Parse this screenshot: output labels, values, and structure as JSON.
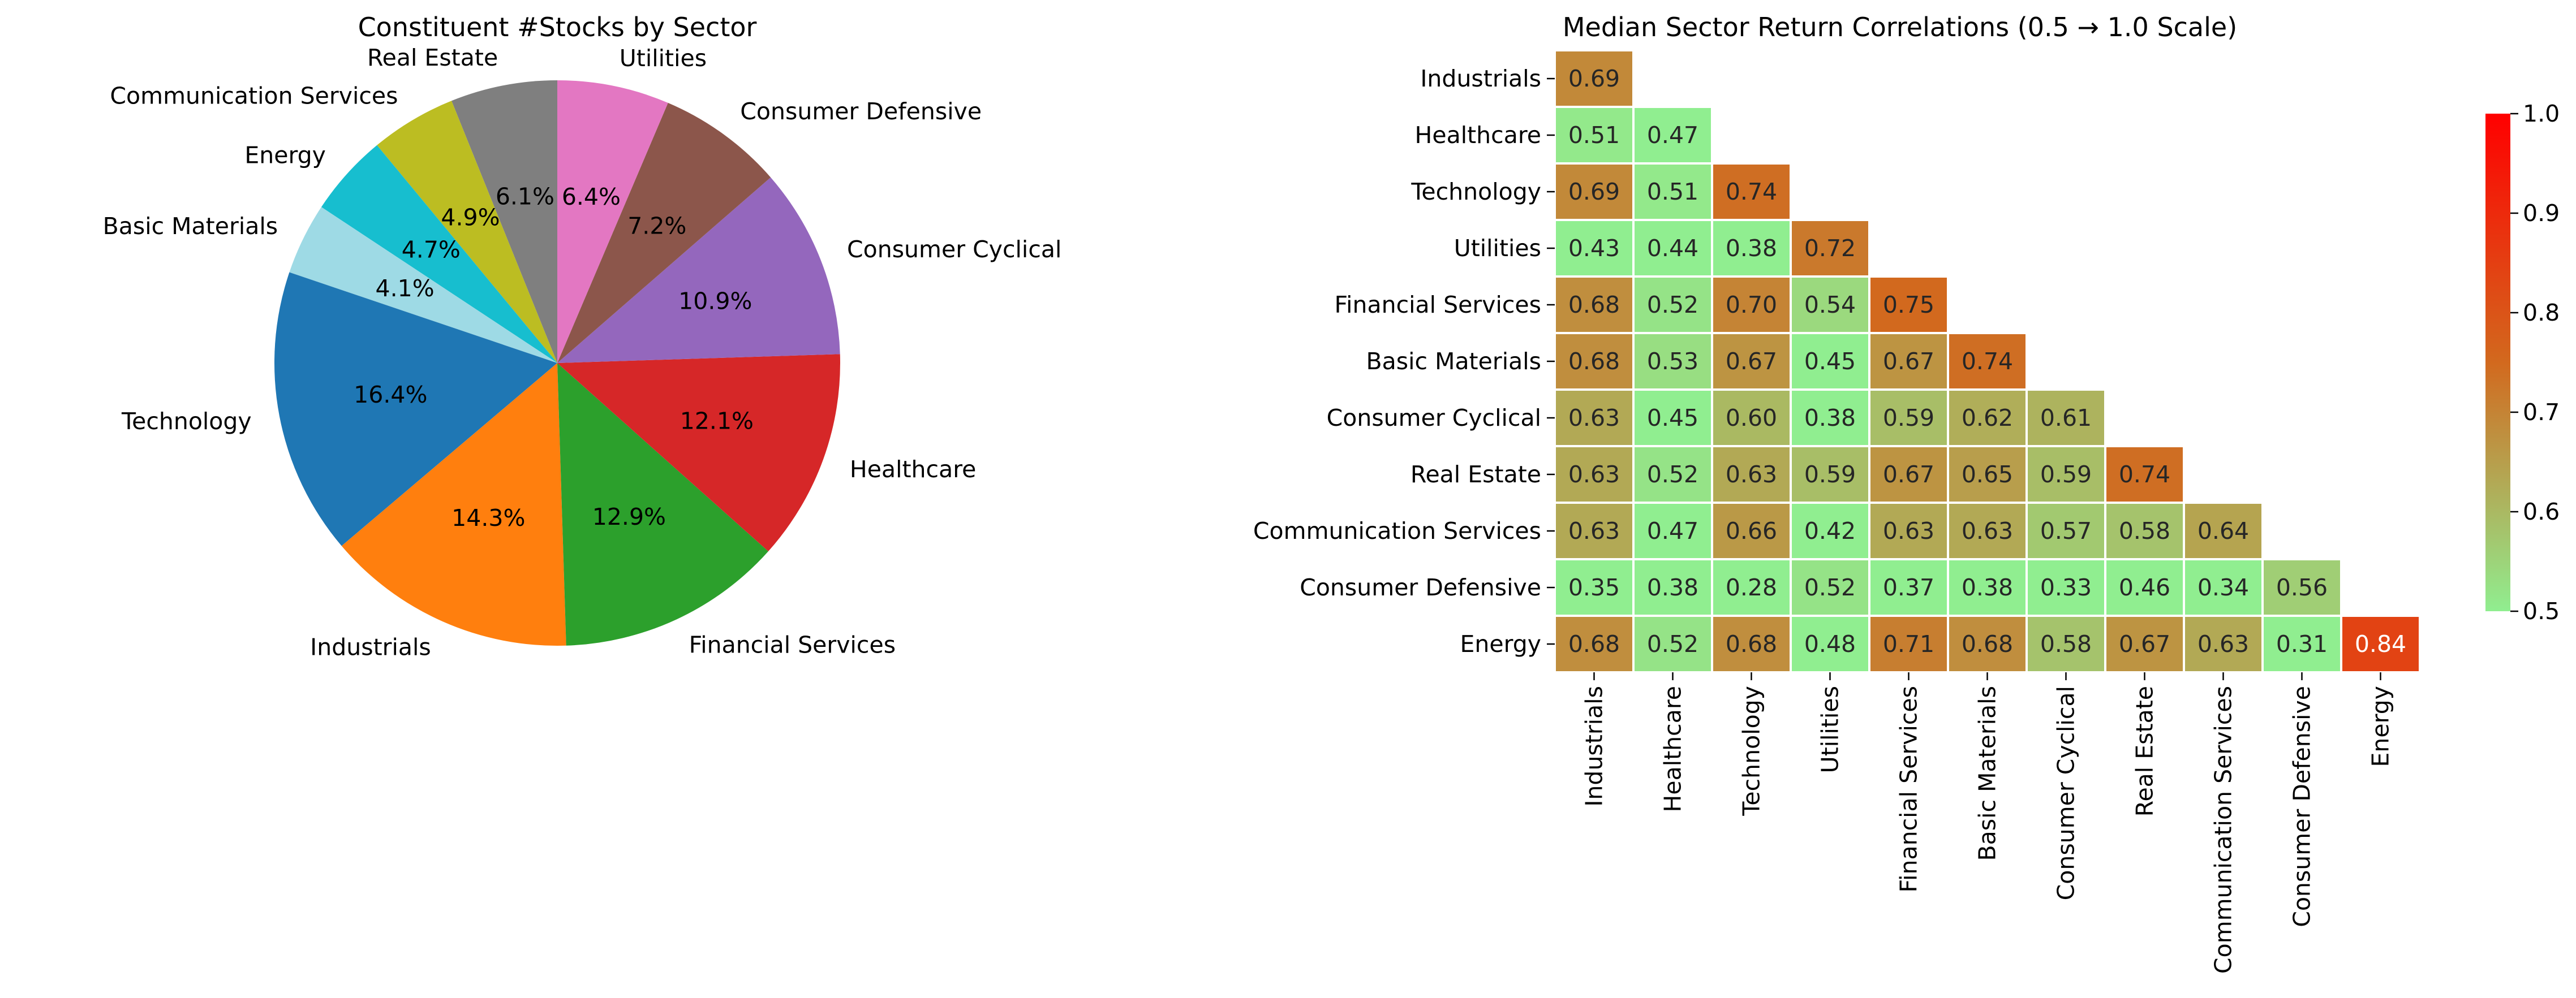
{
  "chart_data": [
    {
      "type": "pie",
      "title": "Constituent #Stocks by Sector",
      "start_angle_deg": 90,
      "direction": "counterclockwise",
      "slices": [
        {
          "label": "Real Estate",
          "value": 6.1,
          "pct_label": "6.1%",
          "color": "#7f7f7f"
        },
        {
          "label": "Communication Services",
          "value": 4.9,
          "pct_label": "4.9%",
          "color": "#bcbd22"
        },
        {
          "label": "Energy",
          "value": 4.7,
          "pct_label": "4.7%",
          "color": "#17becf"
        },
        {
          "label": "Basic Materials",
          "value": 4.1,
          "pct_label": "4.1%",
          "color": "#9edae5"
        },
        {
          "label": "Technology",
          "value": 16.4,
          "pct_label": "16.4%",
          "color": "#1f77b4"
        },
        {
          "label": "Industrials",
          "value": 14.3,
          "pct_label": "14.3%",
          "color": "#ff7f0e"
        },
        {
          "label": "Financial Services",
          "value": 12.9,
          "pct_label": "12.9%",
          "color": "#2ca02c"
        },
        {
          "label": "Healthcare",
          "value": 12.1,
          "pct_label": "12.1%",
          "color": "#d62728"
        },
        {
          "label": "Consumer Cyclical",
          "value": 10.9,
          "pct_label": "10.9%",
          "color": "#9467bd"
        },
        {
          "label": "Consumer Defensive",
          "value": 7.2,
          "pct_label": "7.2%",
          "color": "#8c564b"
        },
        {
          "label": "Utilities",
          "value": 6.4,
          "pct_label": "6.4%",
          "color": "#e377c2"
        }
      ]
    },
    {
      "type": "heatmap",
      "title": "Median Sector Return Correlations (0.5 → 1.0 Scale)",
      "rows": [
        "Industrials",
        "Healthcare",
        "Technology",
        "Utilities",
        "Financial Services",
        "Basic Materials",
        "Consumer Cyclical",
        "Real Estate",
        "Communication Services",
        "Consumer Defensive",
        "Energy"
      ],
      "columns": [
        "Industrials",
        "Healthcare",
        "Technology",
        "Utilities",
        "Financial Services",
        "Basic Materials",
        "Consumer Cyclical",
        "Real Estate",
        "Communication Services",
        "Consumer Defensive",
        "Energy"
      ],
      "mask": "upper triangle hidden",
      "values": [
        [
          0.69
        ],
        [
          0.51,
          0.47
        ],
        [
          0.69,
          0.51,
          0.74
        ],
        [
          0.43,
          0.44,
          0.38,
          0.72
        ],
        [
          0.68,
          0.52,
          0.7,
          0.54,
          0.75
        ],
        [
          0.68,
          0.53,
          0.67,
          0.45,
          0.67,
          0.74
        ],
        [
          0.63,
          0.45,
          0.6,
          0.38,
          0.59,
          0.62,
          0.61
        ],
        [
          0.63,
          0.52,
          0.63,
          0.59,
          0.67,
          0.65,
          0.59,
          0.74
        ],
        [
          0.63,
          0.47,
          0.66,
          0.42,
          0.63,
          0.63,
          0.57,
          0.58,
          0.64
        ],
        [
          0.35,
          0.38,
          0.28,
          0.52,
          0.37,
          0.38,
          0.33,
          0.46,
          0.34,
          0.56
        ],
        [
          0.68,
          0.52,
          0.68,
          0.48,
          0.71,
          0.68,
          0.58,
          0.67,
          0.63,
          0.31,
          0.84
        ]
      ],
      "color_scale": {
        "min": 0.5,
        "max": 1.0,
        "colors": [
          "#90ee90",
          "#d2691e",
          "#ff0000"
        ],
        "ticks": [
          "0.5",
          "0.6",
          "0.7",
          "0.8",
          "0.9",
          "1.0"
        ]
      }
    }
  ]
}
